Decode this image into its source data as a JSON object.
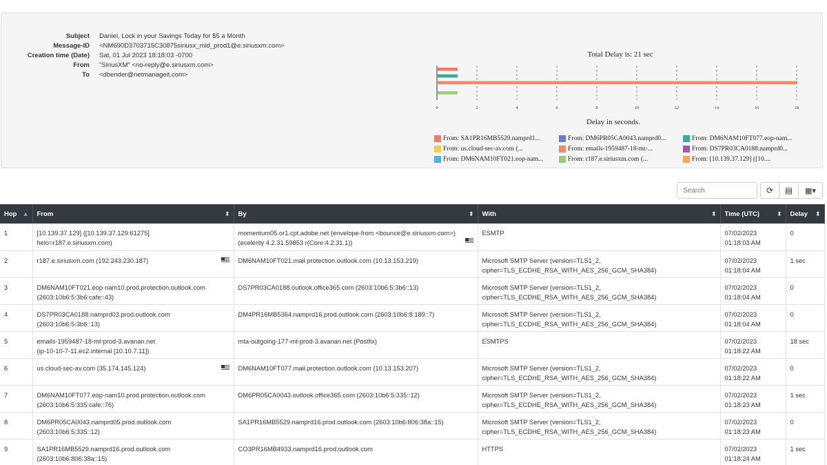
{
  "message": {
    "fields": [
      {
        "label": "Subject",
        "value": "Daniel, Lock in your Savings Today for $5 a Month"
      },
      {
        "label": "Message-ID",
        "value": "<NM690D3703715C30875siriusx_mid_prod1@e.siriusxm.com>"
      },
      {
        "label": "Creation time (Date)",
        "value": "Sat, 01 Jul 2023 18:18:03 -0700"
      },
      {
        "label": "From",
        "value": "\"SiriusXM\" <no-reply@e.siriusxm.com>"
      },
      {
        "label": "To",
        "value": "<dbender@netmanageit.com>"
      }
    ]
  },
  "chart_data": {
    "type": "bar",
    "orientation": "horizontal",
    "title": "Total Delay is: 21 sec",
    "xlabel": "Delay in seconds.",
    "xlim": [
      0,
      18
    ],
    "xticks": [
      0,
      2,
      4,
      6,
      8,
      10,
      12,
      14,
      16,
      18
    ],
    "grid": "vertical dashed",
    "legend_position": "bottom",
    "series": [
      {
        "name": "From: SA1PR16MB5529.namprd1...",
        "value": 1,
        "color": "#e8806b"
      },
      {
        "name": "From: DM6PR05CA0043.namprd0...",
        "value": 0,
        "color": "#6b7fc4"
      },
      {
        "name": "From: DM6NAM10FT077.eop-nam...",
        "value": 1,
        "color": "#3aa89a"
      },
      {
        "name": "From: us.cloud-sec-av.com (...",
        "value": 0,
        "color": "#f2cf4a"
      },
      {
        "name": "From: emails-1959487-18-mt-...",
        "value": 18,
        "color": "#f08a6a"
      },
      {
        "name": "From: DS7PR03CA0188.namprd0...",
        "value": 0,
        "color": "#9b59b6"
      },
      {
        "name": "From: DM6NAM10FT021.eop-nam...",
        "value": 0,
        "color": "#4ab3e6"
      },
      {
        "name": "From: r187.e.siriusxm.com (...",
        "value": 1,
        "color": "#9ccc7a"
      },
      {
        "name": "From: [10.139.37.129] ([10....",
        "value": 0,
        "color": "#f5a94a"
      }
    ]
  },
  "toolbar": {
    "search_placeholder": "Search",
    "refresh_glyph": "⟳",
    "list_glyph": "▤",
    "columns_glyph": "▦▾"
  },
  "table": {
    "headers": {
      "hop": "Hop",
      "from": "From",
      "by": "By",
      "with": "With",
      "time": "Time (UTC)",
      "delay": "Delay"
    },
    "rows": [
      {
        "hop": "1",
        "from1": "[10.139.37.129] ([10.139.37.129:61275]",
        "from2": "helo=r187.e.siriusxm.com)",
        "by1": "momentum05.or1.cpt.adobe.net (envelope-from <bounce@e.siriusxm.com>)",
        "by2": "(ecelerity 4.2.31.59853 r(Core:4.2.31.1))",
        "with1": "ESMTP",
        "with2": "",
        "time1": "07/02/2023",
        "time2": "01:18:03 AM",
        "delay": "0",
        "from_flag": false,
        "by_flag": true
      },
      {
        "hop": "2",
        "from1": "r187.e.siriusxm.com (192.243.230.187)",
        "from2": "",
        "by1": "DM6NAM10FT021.mail.protection.outlook.com (10.13.153.219)",
        "by2": "",
        "with1": "Microsoft SMTP Server (version=TLS1_2,",
        "with2": "cipher=TLS_ECDHE_RSA_WITH_AES_256_GCM_SHA384)",
        "time1": "07/02/2023",
        "time2": "01:18:04 AM",
        "delay": "1 sec",
        "from_flag": true,
        "by_flag": false
      },
      {
        "hop": "3",
        "from1": "DM6NAM10FT021.eop-nam10.prod.protection.outlook.com",
        "from2": "(2603:10b6:5:3b6:cafe::43)",
        "by1": "DS7PR03CA0188.outlook.office365.com (2603:10b6:5:3b6::13)",
        "by2": "",
        "with1": "Microsoft SMTP Server (version=TLS1_2,",
        "with2": "cipher=TLS_ECDHE_RSA_WITH_AES_256_GCM_SHA384)",
        "time1": "07/02/2023",
        "time2": "01:18:04 AM",
        "delay": "0",
        "from_flag": false,
        "by_flag": false
      },
      {
        "hop": "4",
        "from1": "DS7PR03CA0188.namprd03.prod.outlook.com",
        "from2": "(2603:10b6:5:3b6::13)",
        "by1": "DM4PR16MB5364.namprd16.prod.outlook.com (2603:10b6:8:189::7)",
        "by2": "",
        "with1": "Microsoft SMTP Server (version=TLS1_2,",
        "with2": "cipher=TLS_ECDHE_RSA_WITH_AES_256_GCM_SHA384)",
        "time1": "07/02/2023",
        "time2": "01:18:04 AM",
        "delay": "0",
        "from_flag": false,
        "by_flag": false
      },
      {
        "hop": "5",
        "from1": "emails-1959487-18-mt-prod-3.avanan.net",
        "from2": "(ip-10-10-7-11.ec2.internal [10.10.7.11])",
        "by1": "mta-outgoing-177-mt-prod-3.avanan.net (Postfix)",
        "by2": "",
        "with1": "ESMTPS",
        "with2": "",
        "time1": "07/02/2023",
        "time2": "01:18:22 AM",
        "delay": "18 sec",
        "from_flag": false,
        "by_flag": false
      },
      {
        "hop": "6",
        "from1": "us.cloud-sec-av.com (35.174.145.124)",
        "from2": "",
        "by1": "DM6NAM10FT077.mail.protection.outlook.com (10.13.153.207)",
        "by2": "",
        "with1": "Microsoft SMTP Server (version=TLS1_2,",
        "with2": "cipher=TLS_ECDHE_RSA_WITH_AES_256_GCM_SHA384)",
        "time1": "07/02/2023",
        "time2": "01:18:22 AM",
        "delay": "0",
        "from_flag": true,
        "by_flag": false
      },
      {
        "hop": "7",
        "from1": "DM6NAM10FT077.eop-nam10.prod.protection.outlook.com",
        "from2": "(2603:10b6:5:335:cafe::76)",
        "by1": "DM6PR05CA0043.outlook.office365.com (2603:10b6:5:335::12)",
        "by2": "",
        "with1": "Microsoft SMTP Server (version=TLS1_2,",
        "with2": "cipher=TLS_ECDHE_RSA_WITH_AES_256_GCM_SHA384)",
        "time1": "07/02/2023",
        "time2": "01:18:23 AM",
        "delay": "1 sec",
        "from_flag": false,
        "by_flag": false
      },
      {
        "hop": "8",
        "from1": "DM6PR05CA0043.namprd05.prod.outlook.com",
        "from2": "(2603:10b6:5:335::12)",
        "by1": "SA1PR16MB5529.namprd16.prod.outlook.com (2603:10b6:806:38a::15)",
        "by2": "",
        "with1": "Microsoft SMTP Server (version=TLS1_2,",
        "with2": "cipher=TLS_ECDHE_RSA_WITH_AES_256_GCM_SHA384)",
        "time1": "07/02/2023",
        "time2": "01:18:23 AM",
        "delay": "0",
        "from_flag": false,
        "by_flag": false
      },
      {
        "hop": "9",
        "from1": "SA1PR16MB5529.namprd16.prod.outlook.com",
        "from2": "(2603:10b6:806:38a::15)",
        "by1": "CO3PR16MB4933.namprd16.prod.outlook.com",
        "by2": "",
        "with1": "HTTPS",
        "with2": "",
        "time1": "07/02/2023",
        "time2": "01:18:24 AM",
        "delay": "1 sec",
        "from_flag": false,
        "by_flag": false
      }
    ]
  }
}
